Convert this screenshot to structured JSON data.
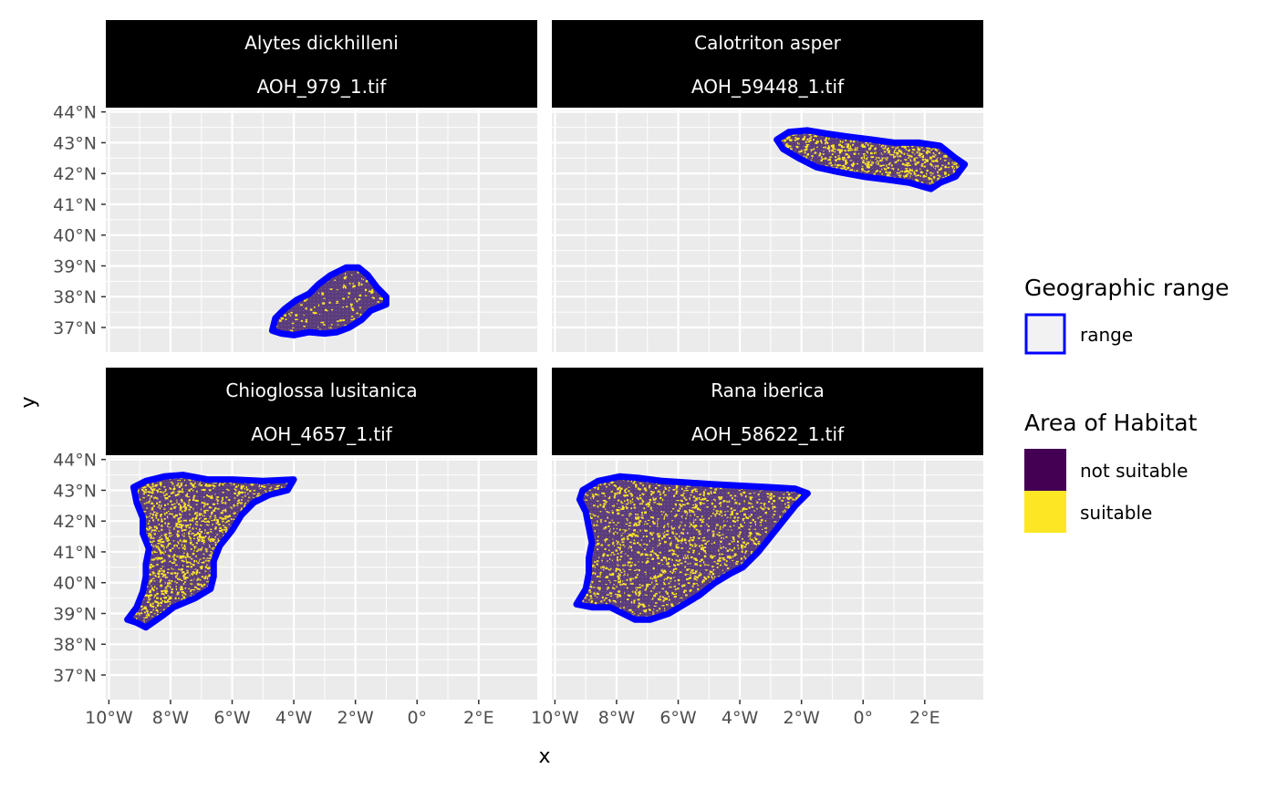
{
  "axes": {
    "x_title": "x",
    "y_title": "y",
    "x_tick_labels": [
      "10°W",
      "8°W",
      "6°W",
      "4°W",
      "2°W",
      "0°",
      "2°E"
    ],
    "x_tick_values": [
      -10,
      -8,
      -6,
      -4,
      -2,
      0,
      2
    ],
    "y_tick_labels": [
      "37°N",
      "38°N",
      "39°N",
      "40°N",
      "41°N",
      "42°N",
      "43°N",
      "44°N"
    ],
    "y_tick_values": [
      37,
      38,
      39,
      40,
      41,
      42,
      43,
      44
    ],
    "x_range": [
      -10.1,
      3.9
    ],
    "y_range": [
      36.2,
      44.05
    ]
  },
  "panels": [
    {
      "species": "Alytes dickhilleni",
      "file": "AOH_979_1.tif",
      "range_polygon": [
        [
          -4.7,
          36.9
        ],
        [
          -4.6,
          37.3
        ],
        [
          -4.3,
          37.6
        ],
        [
          -3.9,
          37.9
        ],
        [
          -3.5,
          38.1
        ],
        [
          -3.2,
          38.4
        ],
        [
          -2.8,
          38.7
        ],
        [
          -2.3,
          38.95
        ],
        [
          -1.9,
          38.95
        ],
        [
          -1.6,
          38.7
        ],
        [
          -1.3,
          38.3
        ],
        [
          -1.0,
          38.0
        ],
        [
          -1.0,
          37.75
        ],
        [
          -1.5,
          37.55
        ],
        [
          -1.8,
          37.25
        ],
        [
          -2.2,
          37.0
        ],
        [
          -2.6,
          36.85
        ],
        [
          -3.0,
          36.8
        ],
        [
          -3.5,
          36.85
        ],
        [
          -4.0,
          36.75
        ],
        [
          -4.4,
          36.8
        ]
      ],
      "suitable_fraction": 0.1
    },
    {
      "species": "Calotriton asper",
      "file": "AOH_59448_1.tif",
      "range_polygon": [
        [
          -2.8,
          43.1
        ],
        [
          -2.4,
          43.35
        ],
        [
          -1.8,
          43.4
        ],
        [
          -1.2,
          43.3
        ],
        [
          -0.5,
          43.2
        ],
        [
          0.3,
          43.1
        ],
        [
          1.0,
          43.0
        ],
        [
          1.8,
          43.0
        ],
        [
          2.5,
          42.9
        ],
        [
          3.0,
          42.5
        ],
        [
          3.3,
          42.3
        ],
        [
          3.0,
          41.9
        ],
        [
          2.5,
          41.7
        ],
        [
          2.2,
          41.5
        ],
        [
          1.5,
          41.7
        ],
        [
          0.8,
          41.8
        ],
        [
          0.0,
          41.9
        ],
        [
          -0.8,
          42.05
        ],
        [
          -1.5,
          42.2
        ],
        [
          -2.1,
          42.5
        ],
        [
          -2.6,
          42.8
        ]
      ],
      "suitable_fraction": 0.4
    },
    {
      "species": "Chioglossa lusitanica",
      "file": "AOH_4657_1.tif",
      "range_polygon": [
        [
          -9.2,
          43.1
        ],
        [
          -8.8,
          43.3
        ],
        [
          -8.2,
          43.45
        ],
        [
          -7.6,
          43.5
        ],
        [
          -6.8,
          43.35
        ],
        [
          -6.0,
          43.35
        ],
        [
          -5.0,
          43.3
        ],
        [
          -4.0,
          43.35
        ],
        [
          -4.2,
          43.0
        ],
        [
          -4.8,
          42.85
        ],
        [
          -5.3,
          42.6
        ],
        [
          -5.7,
          42.2
        ],
        [
          -6.0,
          41.7
        ],
        [
          -6.4,
          41.2
        ],
        [
          -6.6,
          40.7
        ],
        [
          -6.6,
          40.2
        ],
        [
          -6.7,
          39.8
        ],
        [
          -7.2,
          39.5
        ],
        [
          -7.9,
          39.2
        ],
        [
          -8.3,
          38.9
        ],
        [
          -8.8,
          38.55
        ],
        [
          -9.1,
          38.7
        ],
        [
          -9.4,
          38.8
        ],
        [
          -9.1,
          39.2
        ],
        [
          -8.9,
          39.7
        ],
        [
          -8.8,
          40.2
        ],
        [
          -8.8,
          40.6
        ],
        [
          -8.7,
          41.1
        ],
        [
          -8.9,
          41.6
        ],
        [
          -8.9,
          42.1
        ],
        [
          -9.1,
          42.6
        ]
      ],
      "suitable_fraction": 0.35
    },
    {
      "species": "Rana iberica",
      "file": "AOH_58622_1.tif",
      "range_polygon": [
        [
          -9.1,
          43.0
        ],
        [
          -8.6,
          43.3
        ],
        [
          -7.9,
          43.45
        ],
        [
          -7.3,
          43.4
        ],
        [
          -6.5,
          43.3
        ],
        [
          -5.7,
          43.25
        ],
        [
          -4.9,
          43.2
        ],
        [
          -4.0,
          43.15
        ],
        [
          -3.0,
          43.1
        ],
        [
          -2.2,
          43.05
        ],
        [
          -1.8,
          42.9
        ],
        [
          -2.2,
          42.5
        ],
        [
          -2.6,
          42.0
        ],
        [
          -3.0,
          41.5
        ],
        [
          -3.4,
          41.0
        ],
        [
          -3.9,
          40.5
        ],
        [
          -4.3,
          40.3
        ],
        [
          -4.8,
          40.0
        ],
        [
          -5.3,
          39.6
        ],
        [
          -5.8,
          39.3
        ],
        [
          -6.3,
          39.0
        ],
        [
          -6.9,
          38.8
        ],
        [
          -7.4,
          38.8
        ],
        [
          -7.8,
          39.0
        ],
        [
          -8.2,
          39.2
        ],
        [
          -8.8,
          39.2
        ],
        [
          -9.3,
          39.3
        ],
        [
          -9.0,
          39.8
        ],
        [
          -8.9,
          40.3
        ],
        [
          -8.9,
          40.8
        ],
        [
          -8.8,
          41.3
        ],
        [
          -8.9,
          41.8
        ],
        [
          -9.0,
          42.3
        ],
        [
          -9.2,
          42.7
        ]
      ],
      "suitable_fraction": 0.25
    }
  ],
  "legend": {
    "range": {
      "title": "Geographic range",
      "label": "range",
      "color": "#0000FF"
    },
    "habitat": {
      "title": "Area of Habitat",
      "items": [
        {
          "label": "not suitable",
          "color": "#440154"
        },
        {
          "label": "suitable",
          "color": "#FDE725"
        }
      ]
    }
  },
  "colors": {
    "panel_background": "#EBEBEB",
    "grid": "#FFFFFF",
    "strip": "#000000",
    "strip_text": "#FFFFFF",
    "axis_text": "#4D4D4D",
    "range_line": "#0000FF",
    "not_suitable": "#440154",
    "suitable": "#FDE725"
  }
}
